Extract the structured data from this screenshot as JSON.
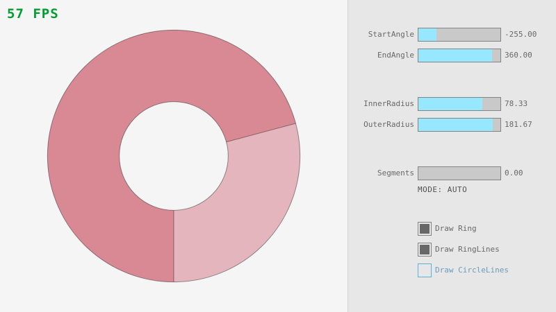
{
  "colors": {
    "bg": "#F5F5F5",
    "panel_bg": "#E7E7E7",
    "divider": "#D4D4D4",
    "border_gray": "#838383",
    "slider_track": "#C9C9C9",
    "slider_fill": "#97E8FF",
    "text_gray": "#686868",
    "check_color": "#686868",
    "mode_text_color": "#505050",
    "focus_border": "#5BB2D9",
    "focus_text": "#6C9BBC",
    "fps_green": "#009E2F",
    "ring_overlap": "#D98994",
    "ring_single": "#E4B5BC",
    "ring_line": "rgba(0,0,0,0.4)"
  },
  "fps": {
    "text": "57 FPS"
  },
  "ring": {
    "start_angle": -255.0,
    "end_angle": 360.0,
    "inner_radius": 78.33,
    "outer_radius": 181.67,
    "overlap_color": "#D98994",
    "single_color": "#E4B5BC"
  },
  "panel": {
    "sliders": [
      {
        "id": "start_angle",
        "label": "StartAngle",
        "value_text": "-255.00",
        "fill_pct": 21.7
      },
      {
        "id": "end_angle",
        "label": "EndAngle",
        "value_text": "360.00",
        "fill_pct": 90.0
      },
      {
        "id": "inner_radius",
        "label": "InnerRadius",
        "value_text": "78.33",
        "fill_pct": 78.3
      },
      {
        "id": "outer_radius",
        "label": "OuterRadius",
        "value_text": "181.67",
        "fill_pct": 90.8
      },
      {
        "id": "segments",
        "label": "Segments",
        "value_text": "0.00",
        "fill_pct": 0
      }
    ],
    "mode_text": "MODE: AUTO",
    "checkboxes": [
      {
        "id": "draw_ring",
        "label": "Draw Ring",
        "checked": true,
        "focused": false
      },
      {
        "id": "draw_ring_lines",
        "label": "Draw RingLines",
        "checked": true,
        "focused": false
      },
      {
        "id": "draw_circle_lines",
        "label": "Draw CircleLines",
        "checked": false,
        "focused": true
      }
    ]
  }
}
